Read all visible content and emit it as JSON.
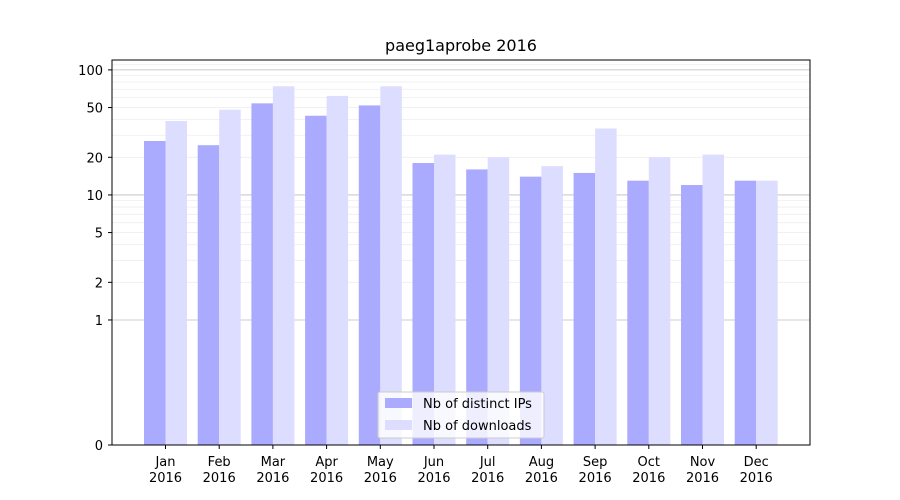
{
  "chart_data": {
    "type": "bar",
    "title": "paeg1aprobe 2016",
    "xlabel": "",
    "ylabel": "",
    "yscale": "symlog",
    "ylim": [
      0,
      120
    ],
    "yticks": [
      0,
      1,
      2,
      5,
      10,
      20,
      50,
      100
    ],
    "ytick_labels": [
      "0",
      "1",
      "2",
      "5",
      "10",
      "20",
      "50",
      "100"
    ],
    "grid": true,
    "legend_position": "bottom-center",
    "categories": [
      [
        "Jan",
        "2016"
      ],
      [
        "Feb",
        "2016"
      ],
      [
        "Mar",
        "2016"
      ],
      [
        "Apr",
        "2016"
      ],
      [
        "May",
        "2016"
      ],
      [
        "Jun",
        "2016"
      ],
      [
        "Jul",
        "2016"
      ],
      [
        "Aug",
        "2016"
      ],
      [
        "Sep",
        "2016"
      ],
      [
        "Oct",
        "2016"
      ],
      [
        "Nov",
        "2016"
      ],
      [
        "Dec",
        "2016"
      ]
    ],
    "series": [
      {
        "name": "Nb of distinct IPs",
        "color": "#aaaaff",
        "values": [
          27,
          25,
          54,
          43,
          52,
          18,
          16,
          14,
          15,
          13,
          12,
          13
        ]
      },
      {
        "name": "Nb of downloads",
        "color": "#ddddff",
        "values": [
          39,
          48,
          74,
          62,
          74,
          21,
          20,
          17,
          34,
          20,
          21,
          13
        ]
      }
    ]
  }
}
